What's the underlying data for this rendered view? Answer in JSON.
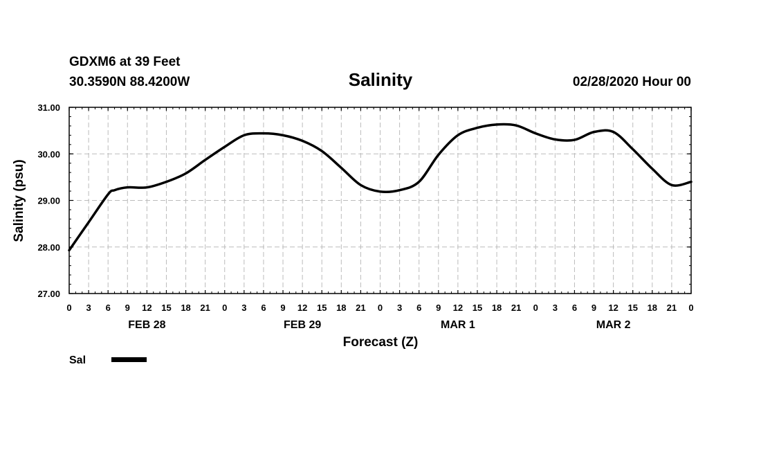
{
  "header": {
    "station": "GDXM6 at 39 Feet",
    "location": "30.3590N 88.4200W",
    "title": "Salinity",
    "issued": "02/28/2020 Hour 00"
  },
  "legend": {
    "label": "Sal"
  },
  "colors": {
    "line": "#000000",
    "grid": "#bbbbbb",
    "frame": "#000000"
  },
  "chart_data": {
    "type": "line",
    "title": "Salinity",
    "xlabel": "Forecast (Z)",
    "ylabel": "Salinity (psu)",
    "ylim": [
      27.0,
      31.0
    ],
    "y_ticks": [
      "27.00",
      "28.00",
      "29.00",
      "30.00",
      "31.00"
    ],
    "x_tick_labels": [
      "0",
      "3",
      "6",
      "9",
      "12",
      "15",
      "18",
      "21",
      "0",
      "3",
      "6",
      "9",
      "12",
      "15",
      "18",
      "21",
      "0",
      "3",
      "6",
      "9",
      "12",
      "15",
      "18",
      "21",
      "0",
      "3",
      "6",
      "9",
      "12",
      "15",
      "18",
      "21",
      "0"
    ],
    "day_labels": [
      "FEB 28",
      "FEB 29",
      "MAR 1",
      "MAR 2"
    ],
    "grid": true,
    "series": [
      {
        "name": "Sal",
        "x": [
          0,
          3,
          6,
          7,
          9,
          12,
          15,
          18,
          21,
          24,
          27,
          30,
          33,
          36,
          39,
          42,
          45,
          48,
          51,
          54,
          57,
          60,
          63,
          66,
          69,
          72,
          75,
          78,
          81,
          84,
          87,
          90,
          93,
          96
        ],
        "values": [
          27.93,
          28.53,
          29.13,
          29.22,
          29.28,
          29.28,
          29.4,
          29.58,
          29.87,
          30.15,
          30.4,
          30.44,
          30.4,
          30.28,
          30.06,
          29.7,
          29.33,
          29.19,
          29.22,
          29.4,
          29.98,
          30.4,
          30.56,
          30.63,
          30.61,
          30.44,
          30.31,
          30.3,
          30.47,
          30.47,
          30.1,
          29.68,
          29.33,
          29.4
        ]
      }
    ]
  }
}
